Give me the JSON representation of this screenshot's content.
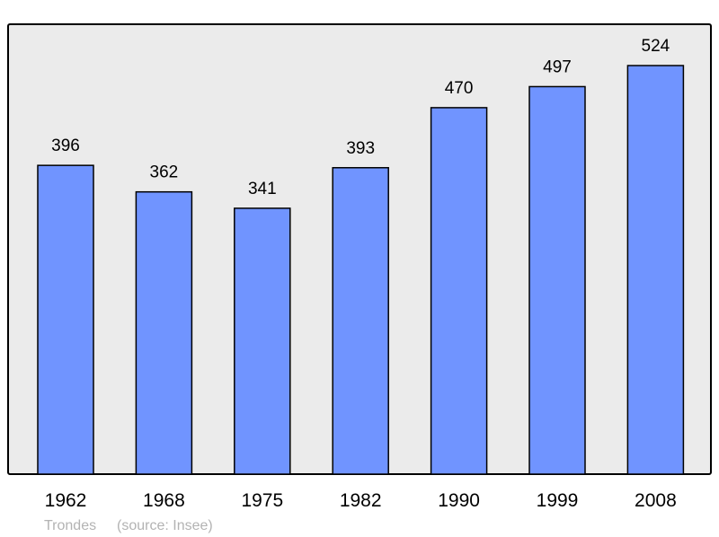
{
  "chart_data": {
    "type": "bar",
    "categories": [
      "1962",
      "1968",
      "1975",
      "1982",
      "1990",
      "1999",
      "2008"
    ],
    "values": [
      396,
      362,
      341,
      393,
      470,
      497,
      524
    ],
    "data_labels": [
      "396",
      "362",
      "341",
      "393",
      "470",
      "497",
      "524"
    ],
    "title": "",
    "xlabel": "",
    "ylabel": "",
    "ylim": [
      0,
      577
    ],
    "grid": false,
    "legend": "none",
    "colors": {
      "bar": "#7094ff",
      "plot_background": "#ebebeb",
      "border": "#000000"
    }
  },
  "footer": {
    "place": "Trondes",
    "source": "(source: Insee)"
  }
}
